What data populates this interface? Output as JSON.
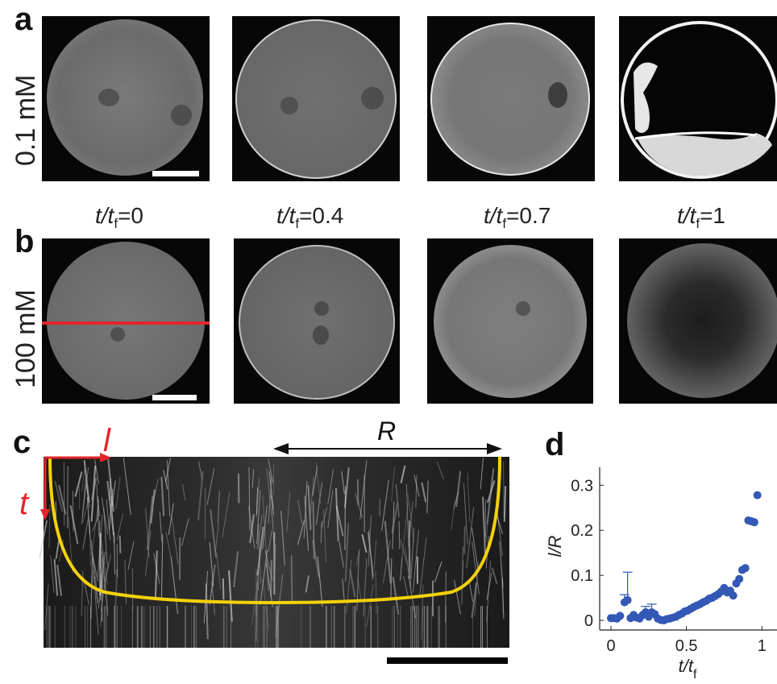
{
  "panels": {
    "a": {
      "letter": "a",
      "row_label": "0.1 mM"
    },
    "b": {
      "letter": "b",
      "row_label": "100 mM"
    },
    "c": {
      "letter": "c",
      "l_label": "l",
      "t_label": "t",
      "r_label": "R"
    },
    "d": {
      "letter": "d"
    }
  },
  "time_labels": {
    "prefix": "t/t",
    "subscript": "f",
    "values": [
      "=0",
      "=0.4",
      "=0.7",
      "=1"
    ]
  },
  "colors": {
    "line_red": "#e3262b",
    "contour_yellow": "#f5d20a",
    "marker_blue": "#3358b5",
    "scalebar": "#000000"
  },
  "chart_data": {
    "type": "scatter",
    "xlabel": "t/t f",
    "ylabel": "l/R",
    "xlim": [
      0,
      1.1
    ],
    "ylim": [
      0,
      0.34
    ],
    "xticks": [
      "0",
      "0.5",
      "1"
    ],
    "yticks": [
      "0",
      "0.1",
      "0.2",
      "0.3"
    ],
    "x": [
      0.0,
      0.02,
      0.04,
      0.06,
      0.09,
      0.11,
      0.13,
      0.15,
      0.17,
      0.19,
      0.21,
      0.23,
      0.25,
      0.27,
      0.29,
      0.31,
      0.33,
      0.35,
      0.37,
      0.39,
      0.41,
      0.43,
      0.45,
      0.47,
      0.49,
      0.51,
      0.53,
      0.55,
      0.57,
      0.59,
      0.61,
      0.63,
      0.65,
      0.67,
      0.69,
      0.71,
      0.73,
      0.75,
      0.77,
      0.79,
      0.81,
      0.83,
      0.85,
      0.87,
      0.89,
      0.91,
      0.93,
      0.95,
      0.97
    ],
    "y": [
      0.005,
      0.005,
      0.004,
      0.01,
      0.04,
      0.045,
      0.005,
      0.012,
      0.006,
      0.004,
      0.012,
      0.018,
      0.008,
      0.018,
      0.014,
      0.004,
      0.001,
      0.0,
      0.003,
      0.004,
      0.006,
      0.008,
      0.012,
      0.015,
      0.02,
      0.022,
      0.026,
      0.03,
      0.033,
      0.036,
      0.04,
      0.043,
      0.048,
      0.05,
      0.054,
      0.058,
      0.064,
      0.072,
      0.062,
      0.066,
      0.055,
      0.082,
      0.092,
      0.112,
      0.116,
      0.222,
      0.22,
      0.218,
      0.278
    ],
    "error_up": [
      0,
      0,
      0,
      0,
      0.017,
      0.062,
      0,
      0,
      0,
      0,
      0,
      0.013,
      0,
      0.018,
      0,
      0,
      0,
      0,
      0,
      0,
      0,
      0,
      0,
      0,
      0,
      0,
      0,
      0,
      0,
      0,
      0,
      0,
      0,
      0,
      0,
      0,
      0,
      0,
      0,
      0,
      0,
      0,
      0,
      0,
      0,
      0,
      0,
      0,
      0
    ]
  }
}
